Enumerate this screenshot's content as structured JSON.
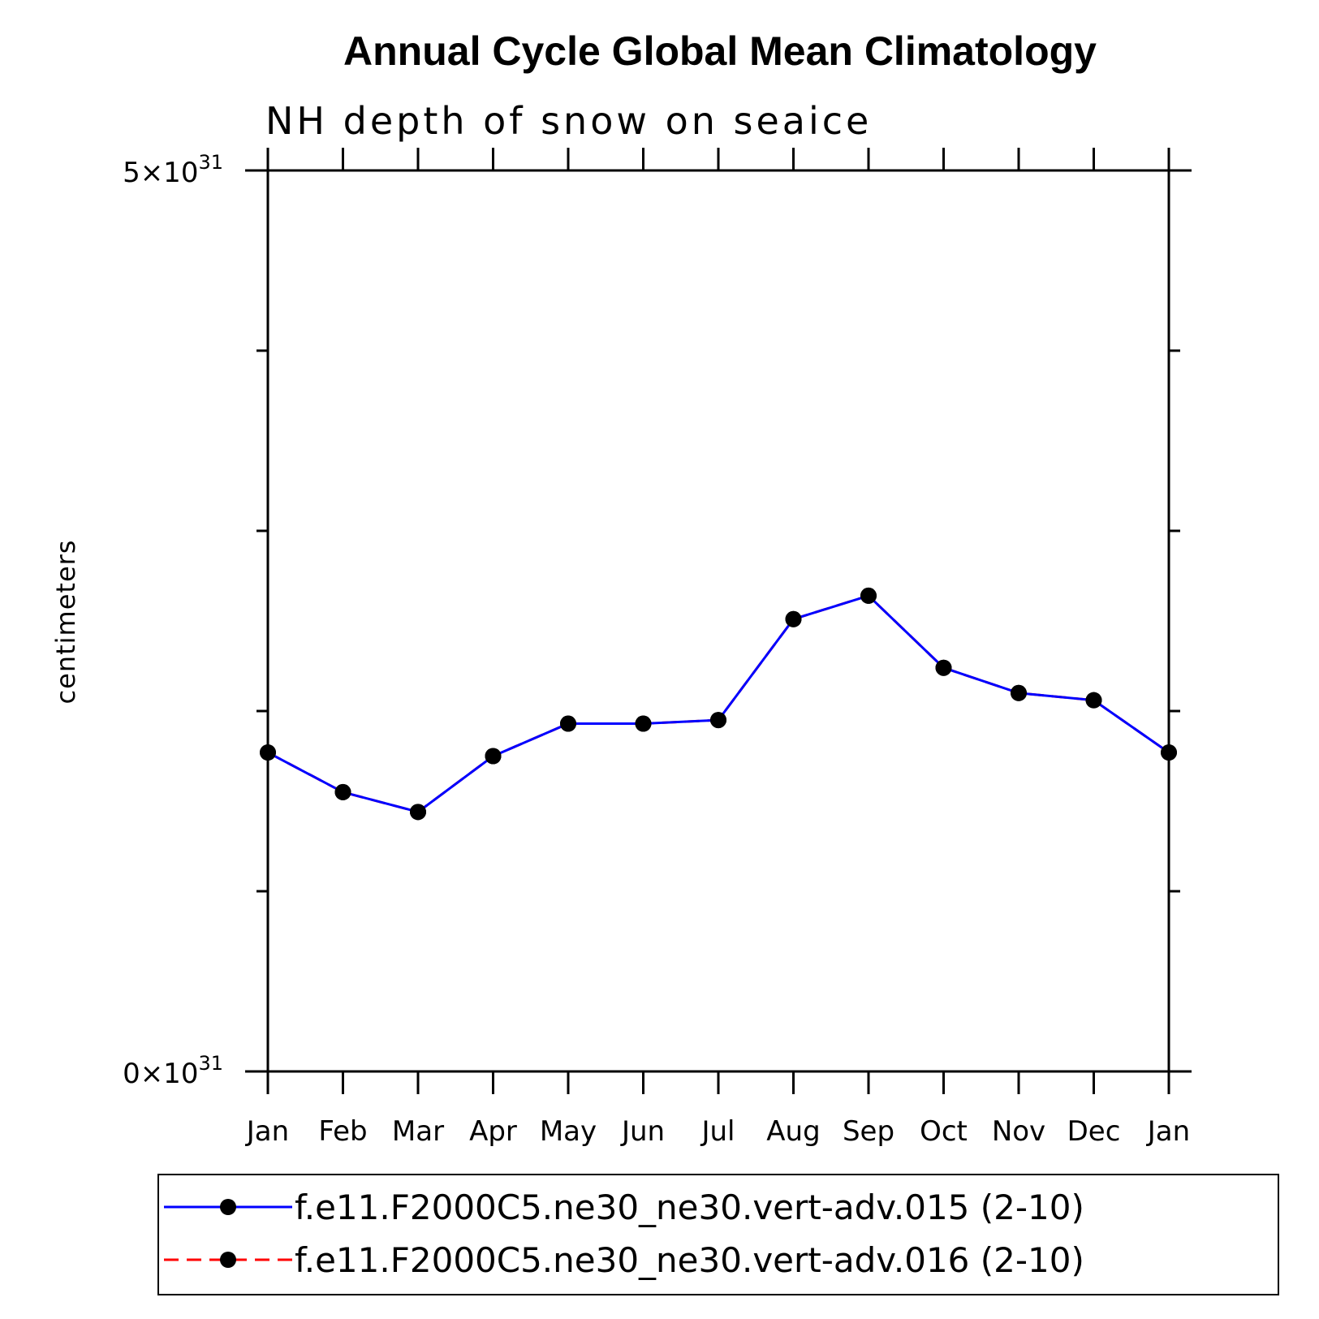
{
  "chart_data": {
    "type": "line",
    "title": "Annual Cycle Global Mean Climatology",
    "subtitle": "NH depth of snow on seaice",
    "ylabel": "centimeters",
    "xlabel": "",
    "ylim": [
      0,
      5e+31
    ],
    "y_tick_labels": [
      {
        "value": 0,
        "mantissa": "0×10",
        "exponent": "31"
      },
      {
        "value": 5e+31,
        "mantissa": "5×10",
        "exponent": "31"
      }
    ],
    "categories": [
      "Jan",
      "Feb",
      "Mar",
      "Apr",
      "May",
      "Jun",
      "Jul",
      "Aug",
      "Sep",
      "Oct",
      "Nov",
      "Dec",
      "Jan"
    ],
    "grid": false,
    "legend_position": "bottom",
    "series": [
      {
        "name": "f.e11.F2000C5.ne30_ne30.vert-adv.015 (2-10)",
        "color": "#0000ff",
        "line_style": "solid",
        "marker": "filled-circle",
        "values": [
          1.77e+31,
          1.55e+31,
          1.44e+31,
          1.75e+31,
          1.93e+31,
          1.93e+31,
          1.95e+31,
          2.51e+31,
          2.64e+31,
          2.24e+31,
          2.1e+31,
          2.06e+31,
          1.77e+31
        ]
      },
      {
        "name": "f.e11.F2000C5.ne30_ne30.vert-adv.016 (2-10)",
        "color": "#ff0000",
        "line_style": "dashed",
        "marker": "filled-circle",
        "values": [
          1.77e+31,
          1.55e+31,
          1.44e+31,
          1.75e+31,
          1.93e+31,
          1.93e+31,
          1.95e+31,
          2.51e+31,
          2.64e+31,
          2.24e+31,
          2.1e+31,
          2.06e+31,
          1.77e+31
        ]
      }
    ]
  }
}
